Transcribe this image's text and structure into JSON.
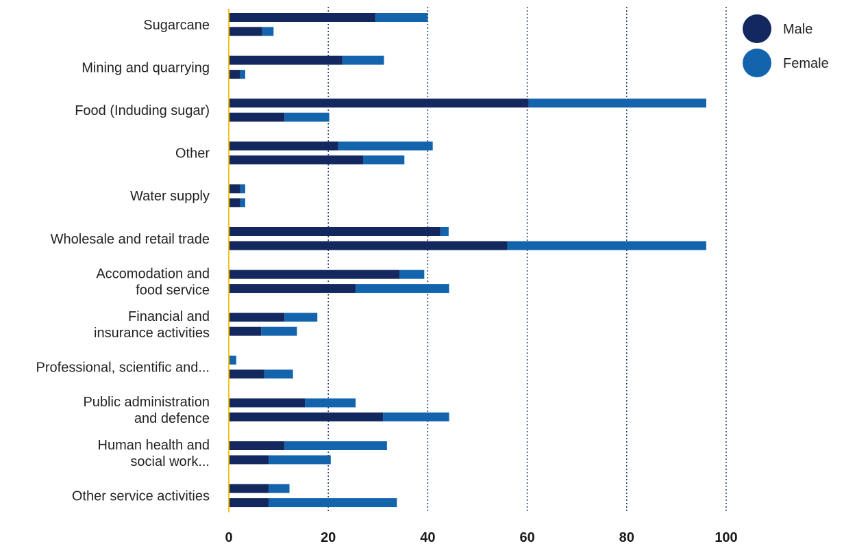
{
  "chart_data": {
    "type": "bar",
    "stacked": true,
    "orientation": "horizontal",
    "categories": [
      [
        "Sugarcane"
      ],
      [
        "Mining and quarrying"
      ],
      [
        "Food (Induding sugar)"
      ],
      [
        "Other"
      ],
      [
        "Water supply"
      ],
      [
        "Wholesale and retail trade"
      ],
      [
        "Accomodation and",
        "food service"
      ],
      [
        "Financial and",
        "insurance activities"
      ],
      [
        "Professional, scientific and..."
      ],
      [
        "Public administration",
        "and defence"
      ],
      [
        "Human health and",
        "social work..."
      ],
      [
        "Other service activities"
      ]
    ],
    "series": [
      {
        "name": "Male",
        "color": "#12285e"
      },
      {
        "name": "Female",
        "color": "#1464ad"
      }
    ],
    "bars": [
      [
        [
          29.5,
          10.5
        ],
        [
          6.7,
          2.3
        ]
      ],
      [
        [
          22.8,
          8.4
        ],
        [
          2.3,
          1.0
        ]
      ],
      [
        [
          60.3,
          35.7
        ],
        [
          11.2,
          9.0
        ]
      ],
      [
        [
          22.0,
          19.0
        ],
        [
          27.0,
          8.3
        ]
      ],
      [
        [
          2.3,
          1.0
        ],
        [
          2.3,
          1.0
        ]
      ],
      [
        [
          42.5,
          1.7
        ],
        [
          56.0,
          40.0
        ]
      ],
      [
        [
          34.3,
          5.0
        ],
        [
          25.5,
          18.8
        ]
      ],
      [
        [
          11.2,
          6.6
        ],
        [
          6.5,
          7.2
        ]
      ],
      [
        [
          0.0,
          1.5
        ],
        [
          7.1,
          5.8
        ]
      ],
      [
        [
          15.3,
          10.2
        ],
        [
          31.0,
          13.3
        ]
      ],
      [
        [
          11.2,
          20.6
        ],
        [
          8.0,
          12.5
        ]
      ],
      [
        [
          8.0,
          4.2
        ],
        [
          8.0,
          25.8
        ]
      ]
    ],
    "xlim": [
      0,
      100
    ],
    "xticks": [
      "0",
      "20",
      "40",
      "60",
      "80",
      "100"
    ],
    "grid": "vertical dotted",
    "legend_position": "top-right",
    "title": "",
    "xlabel": "",
    "ylabel": ""
  }
}
